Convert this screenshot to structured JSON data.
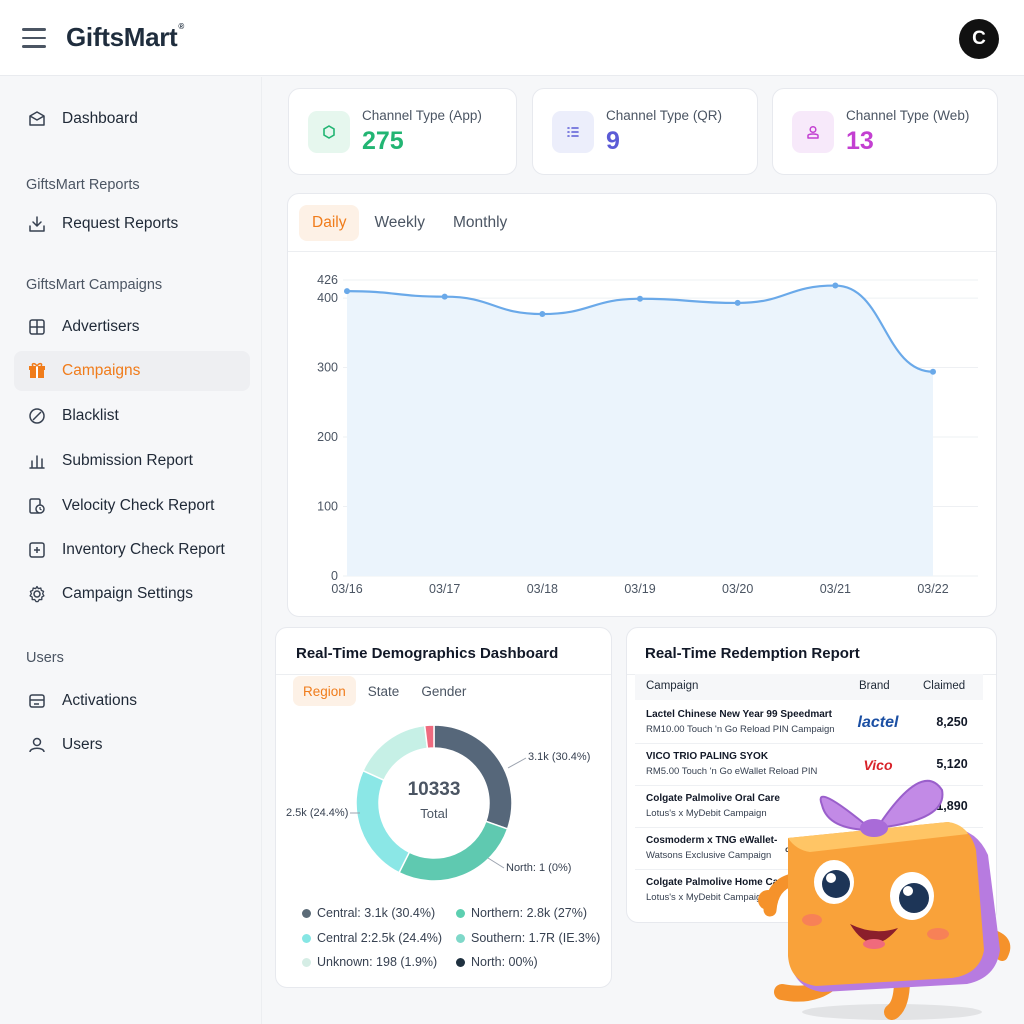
{
  "header": {
    "brand": "GiftsMart",
    "brand_mark": "®",
    "avatar_initial": "C"
  },
  "sidebar": {
    "sections": [
      "GiftsMart Reports",
      "GiftsMart Campaigns",
      "Users"
    ],
    "items": [
      {
        "label": "Dashboard",
        "icon": "envelope-icon"
      },
      {
        "label": "Request Reports",
        "icon": "download-icon"
      },
      {
        "label": "Advertisers",
        "icon": "grid-icon"
      },
      {
        "label": "Campaigns",
        "icon": "gift-icon",
        "active": true
      },
      {
        "label": "Blacklist",
        "icon": "ban-icon"
      },
      {
        "label": "Submission Report",
        "icon": "bar-chart-icon"
      },
      {
        "label": "Velocity Check Report",
        "icon": "clock-report-icon"
      },
      {
        "label": "Inventory Check Report",
        "icon": "plus-box-icon"
      },
      {
        "label": "Campaign Settings",
        "icon": "gear-icon"
      },
      {
        "label": "Activations",
        "icon": "activation-icon"
      },
      {
        "label": "Users",
        "icon": "user-icon"
      }
    ]
  },
  "stats": [
    {
      "label": "Channel Type (App)",
      "value": "275",
      "color": "#22b573",
      "bg": "#e6f7ee",
      "icon": "hexagon-icon"
    },
    {
      "label": "Channel Type (QR)",
      "value": "9",
      "color": "#5b5bd6",
      "bg": "#eceefb",
      "icon": "list-icon"
    },
    {
      "label": "Channel Type (Web)",
      "value": "13",
      "color": "#c33fd1",
      "bg": "#f7e9fa",
      "icon": "user-icon"
    }
  ],
  "chart": {
    "tabs": [
      "Daily",
      "Weekly",
      "Monthly"
    ],
    "active_tab": "Daily"
  },
  "chart_data": {
    "type": "area",
    "x": [
      "03/16",
      "03/17",
      "03/18",
      "03/19",
      "03/20",
      "03/21",
      "03/22"
    ],
    "values": [
      410,
      402,
      377,
      399,
      393,
      418,
      294
    ],
    "y_ticks": [
      0,
      100,
      200,
      300,
      400,
      426
    ],
    "ylim": [
      0,
      426
    ],
    "grid": true,
    "colors": {
      "line": "#6aa9e9",
      "fill": "#eaf3fc"
    }
  },
  "demographics": {
    "title": "Real-Time Demographics Dashboard",
    "tabs": [
      "Region",
      "State",
      "Gender"
    ],
    "active_tab": "Region",
    "total": "10333",
    "total_label": "Total",
    "callouts": [
      "3.1k (30.4%)",
      "2.5k (24.4%)",
      "North: 1 (0%)"
    ],
    "legend": [
      {
        "label": "Central: 3.1k (30.4%)",
        "color": "#5b6b77"
      },
      {
        "label": "Northern: 2.8k (27%)",
        "color": "#5ccfb0"
      },
      {
        "label": "Central 2:2.5k (24.4%)",
        "color": "#86e6e4"
      },
      {
        "label": "Southern: 1.7R (IE.3%)",
        "color": "#7fd8c9"
      },
      {
        "label": "Unknown: 198 (1.9%)",
        "color": "#d5ede5"
      },
      {
        "label": "North: 00%)",
        "color": "#1f3140"
      }
    ]
  },
  "donut_data": {
    "type": "pie",
    "segments": [
      {
        "name": "Central",
        "value": 30.4,
        "color": "#56677a"
      },
      {
        "name": "Northern",
        "value": 27,
        "color": "#5fc9b0"
      },
      {
        "name": "Central 2",
        "value": 24.4,
        "color": "#8be7e6"
      },
      {
        "name": "Southern",
        "value": 16.3,
        "color": "#c6f0e6"
      },
      {
        "name": "Unknown",
        "value": 1.9,
        "color": "#ef6b7f"
      }
    ]
  },
  "redemption": {
    "title": "Real-Time Redemption Report",
    "columns": [
      "Campaign",
      "Brand",
      "Claimed"
    ],
    "rows": [
      {
        "title": "Lactel Chinese New Year 99 Speedmart",
        "sub": "RM10.00 Touch 'n Go Reload PIN Campaign",
        "brand": "lactel",
        "brand_color": "#1b4fa3",
        "claimed": "8,250"
      },
      {
        "title": "VICO TRIO PALING SYOK",
        "sub": "RM5.00 Touch 'n Go eWallet Reload PIN",
        "brand": "Vico",
        "brand_color": "#d8232a",
        "claimed": "5,120"
      },
      {
        "title": "Colgate Palmolive Oral Care",
        "sub": "Lotus's x MyDebit Campaign",
        "brand": "",
        "brand_color": "#d8232a",
        "claimed": "1,890"
      },
      {
        "title": "Cosmoderm x TNG eWallet-",
        "sub": "Watsons Exclusive Campaign",
        "brand": "cosmo",
        "brand_color": "#333333",
        "claimed": ""
      },
      {
        "title": "Colgate Palmolive Home Car",
        "sub": "Lotus's x MyDebit Campaign",
        "brand": "",
        "brand_color": "#333333",
        "claimed": ""
      }
    ]
  }
}
